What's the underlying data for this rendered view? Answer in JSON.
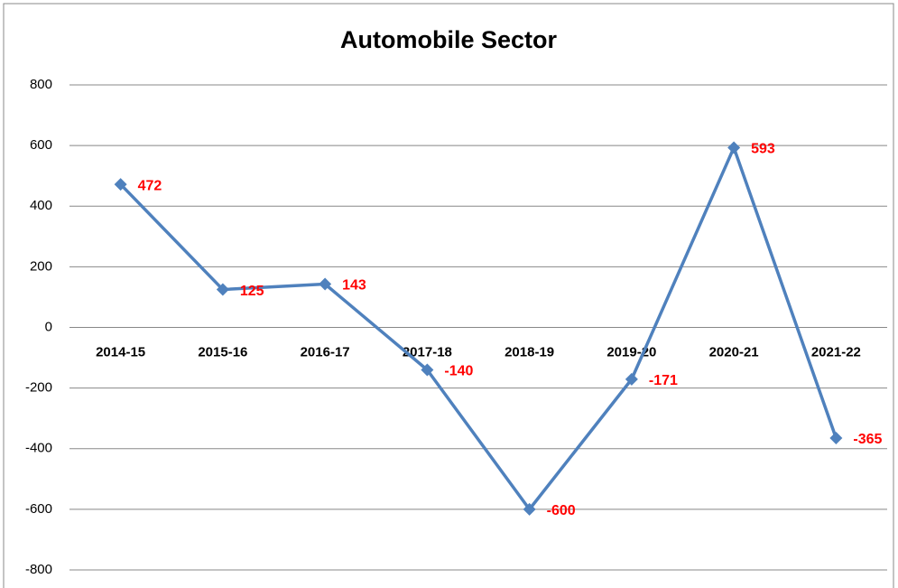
{
  "chart_data": {
    "type": "line",
    "title": "Automobile Sector",
    "categories": [
      "2014-15",
      "2015-16",
      "2016-17",
      "2017-18",
      "2018-19",
      "2019-20",
      "2020-21",
      "2021-22"
    ],
    "series": [
      {
        "name": "Automobile Sector",
        "color": "#4f81bd",
        "values": [
          472,
          125,
          143,
          -140,
          -600,
          -171,
          593,
          -365
        ]
      }
    ],
    "ylim": [
      -800,
      800
    ],
    "yticks": [
      -800,
      -600,
      -400,
      -200,
      0,
      200,
      400,
      600,
      800
    ],
    "grid": true,
    "label_color": "#ff0000"
  }
}
